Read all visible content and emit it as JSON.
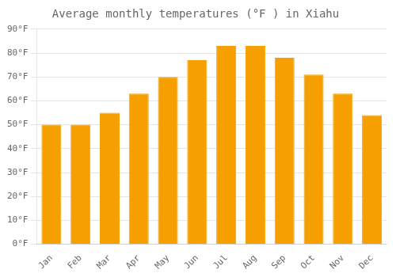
{
  "chart_data": {
    "type": "bar",
    "title": "Average monthly temperatures (°F ) in Xiahu",
    "categories": [
      "Jan",
      "Feb",
      "Mar",
      "Apr",
      "May",
      "Jun",
      "Jul",
      "Aug",
      "Sep",
      "Oct",
      "Nov",
      "Dec"
    ],
    "values": [
      50,
      50,
      55,
      63,
      70,
      77,
      83,
      83,
      78,
      71,
      63,
      54
    ],
    "color": "#F5A000",
    "ylim": [
      0,
      90
    ],
    "yticks": [
      {
        "value": 0,
        "label": "0°F"
      },
      {
        "value": 10,
        "label": "10°F"
      },
      {
        "value": 20,
        "label": "20°F"
      },
      {
        "value": 30,
        "label": "30°F"
      },
      {
        "value": 40,
        "label": "40°F"
      },
      {
        "value": 50,
        "label": "50°F"
      },
      {
        "value": 60,
        "label": "60°F"
      },
      {
        "value": 70,
        "label": "70°F"
      },
      {
        "value": 80,
        "label": "80°F"
      },
      {
        "value": 90,
        "label": "90°F"
      }
    ],
    "grid": true
  }
}
